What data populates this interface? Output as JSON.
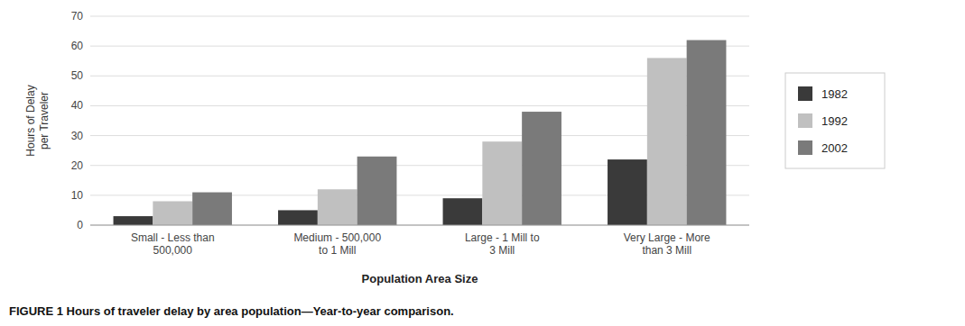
{
  "chart_data": {
    "type": "bar",
    "categories": [
      "Small - Less than\n500,000",
      "Medium - 500,000\nto 1 Mill",
      "Large - 1 Mill to\n3 Mill",
      "Very Large - More\nthan 3 Mill"
    ],
    "series": [
      {
        "name": "1982",
        "color": "#3a3a3a",
        "values": [
          3,
          5,
          9,
          22
        ]
      },
      {
        "name": "1992",
        "color": "#c0c0c0",
        "values": [
          8,
          12,
          28,
          56
        ]
      },
      {
        "name": "2002",
        "color": "#7a7a7a",
        "values": [
          11,
          23,
          38,
          62
        ]
      }
    ],
    "ylabel": "Hours of Delay\nper Traveler",
    "xlabel": "Population Area Size",
    "caption": "FIGURE 1  Hours of traveler delay by area population—Year-to-year comparison.",
    "ylim": [
      0,
      70
    ],
    "yticks": [
      0,
      10,
      20,
      30,
      40,
      50,
      60,
      70
    ],
    "grid": true,
    "legend": "right"
  }
}
